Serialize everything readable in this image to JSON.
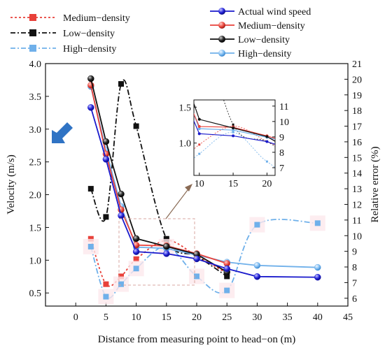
{
  "chart_data": {
    "type": "line",
    "xlabel": "Distance from measuring point to head−on (m)",
    "ylabel_left": "Velocity (m/s)",
    "ylabel_right": "Relative error (%)",
    "xlim": [
      -5,
      45
    ],
    "ylim_left": [
      0.3,
      4.0
    ],
    "ylim_right": [
      5.5,
      21
    ],
    "x_ticks": [
      "0",
      "5",
      "10",
      "15",
      "20",
      "25",
      "30",
      "35",
      "40",
      "45"
    ],
    "y_left_ticks": [
      "0.5",
      "1.0",
      "1.5",
      "2.0",
      "2.5",
      "3.0",
      "3.5",
      "4.0"
    ],
    "y_right_ticks": [
      "6",
      "7",
      "8",
      "9",
      "10",
      "11",
      "12",
      "13",
      "14",
      "15",
      "16",
      "17",
      "18",
      "19",
      "20",
      "21"
    ],
    "velocity_series": [
      {
        "name": "Actual wind speed",
        "color": "#1a1acc",
        "x": [
          2.5,
          5,
          7.5,
          10,
          15,
          20,
          25,
          30,
          40
        ],
        "values": [
          3.33,
          2.54,
          1.68,
          1.13,
          1.1,
          1.02,
          0.87,
          0.75,
          0.74
        ]
      },
      {
        "name": "Medium−density",
        "color": "#e8413a",
        "x": [
          2.5,
          5,
          7.5,
          10,
          15,
          20,
          25
        ],
        "values": [
          3.67,
          2.62,
          1.77,
          1.23,
          1.22,
          1.1,
          0.95
        ]
      },
      {
        "name": "Low−density",
        "color": "#111111",
        "x": [
          2.5,
          5,
          7.5,
          10,
          15,
          20,
          25
        ],
        "values": [
          3.77,
          2.81,
          2.01,
          1.33,
          1.21,
          1.09,
          0.82
        ]
      },
      {
        "name": "High−density",
        "color": "#6fb0ea",
        "x": [
          2.5,
          5,
          7.5,
          10,
          15,
          20,
          25,
          30,
          40
        ],
        "values": [
          3.65,
          2.68,
          1.82,
          1.2,
          1.18,
          1.08,
          0.97,
          0.92,
          0.89
        ]
      }
    ],
    "error_series": [
      {
        "name": "Medium−density",
        "color": "#e8413a",
        "x": [
          2.5,
          5,
          7.5,
          10,
          15,
          20,
          25
        ],
        "values": [
          9.8,
          6.9,
          7.4,
          8.5,
          9.7,
          8.7,
          7.6
        ]
      },
      {
        "name": "Low−density",
        "color": "#111111",
        "x": [
          2.5,
          5,
          7.5,
          10,
          15,
          20,
          25
        ],
        "values": [
          13.0,
          11.2,
          19.7,
          17.0,
          9.8,
          8.7,
          7.4
        ]
      },
      {
        "name": "High−density",
        "color": "#6fb0ea",
        "x": [
          2.5,
          5,
          7.5,
          10,
          15,
          20,
          25,
          30,
          40
        ],
        "values": [
          9.3,
          6.1,
          6.9,
          7.9,
          9.3,
          7.4,
          6.5,
          10.7,
          10.8
        ]
      }
    ],
    "inset": {
      "x_ticks": [
        "10",
        "15",
        "20"
      ],
      "y_left_ticks": [
        "1.0",
        "1.5"
      ],
      "y_right_ticks": [
        "7",
        "8",
        "9",
        "10",
        "11"
      ]
    },
    "legend_left": [
      "Medium−density",
      "Low−density",
      "High−density"
    ],
    "legend_right": [
      "Actual wind speed",
      "Medium−density",
      "Low−density",
      "High−density"
    ]
  }
}
